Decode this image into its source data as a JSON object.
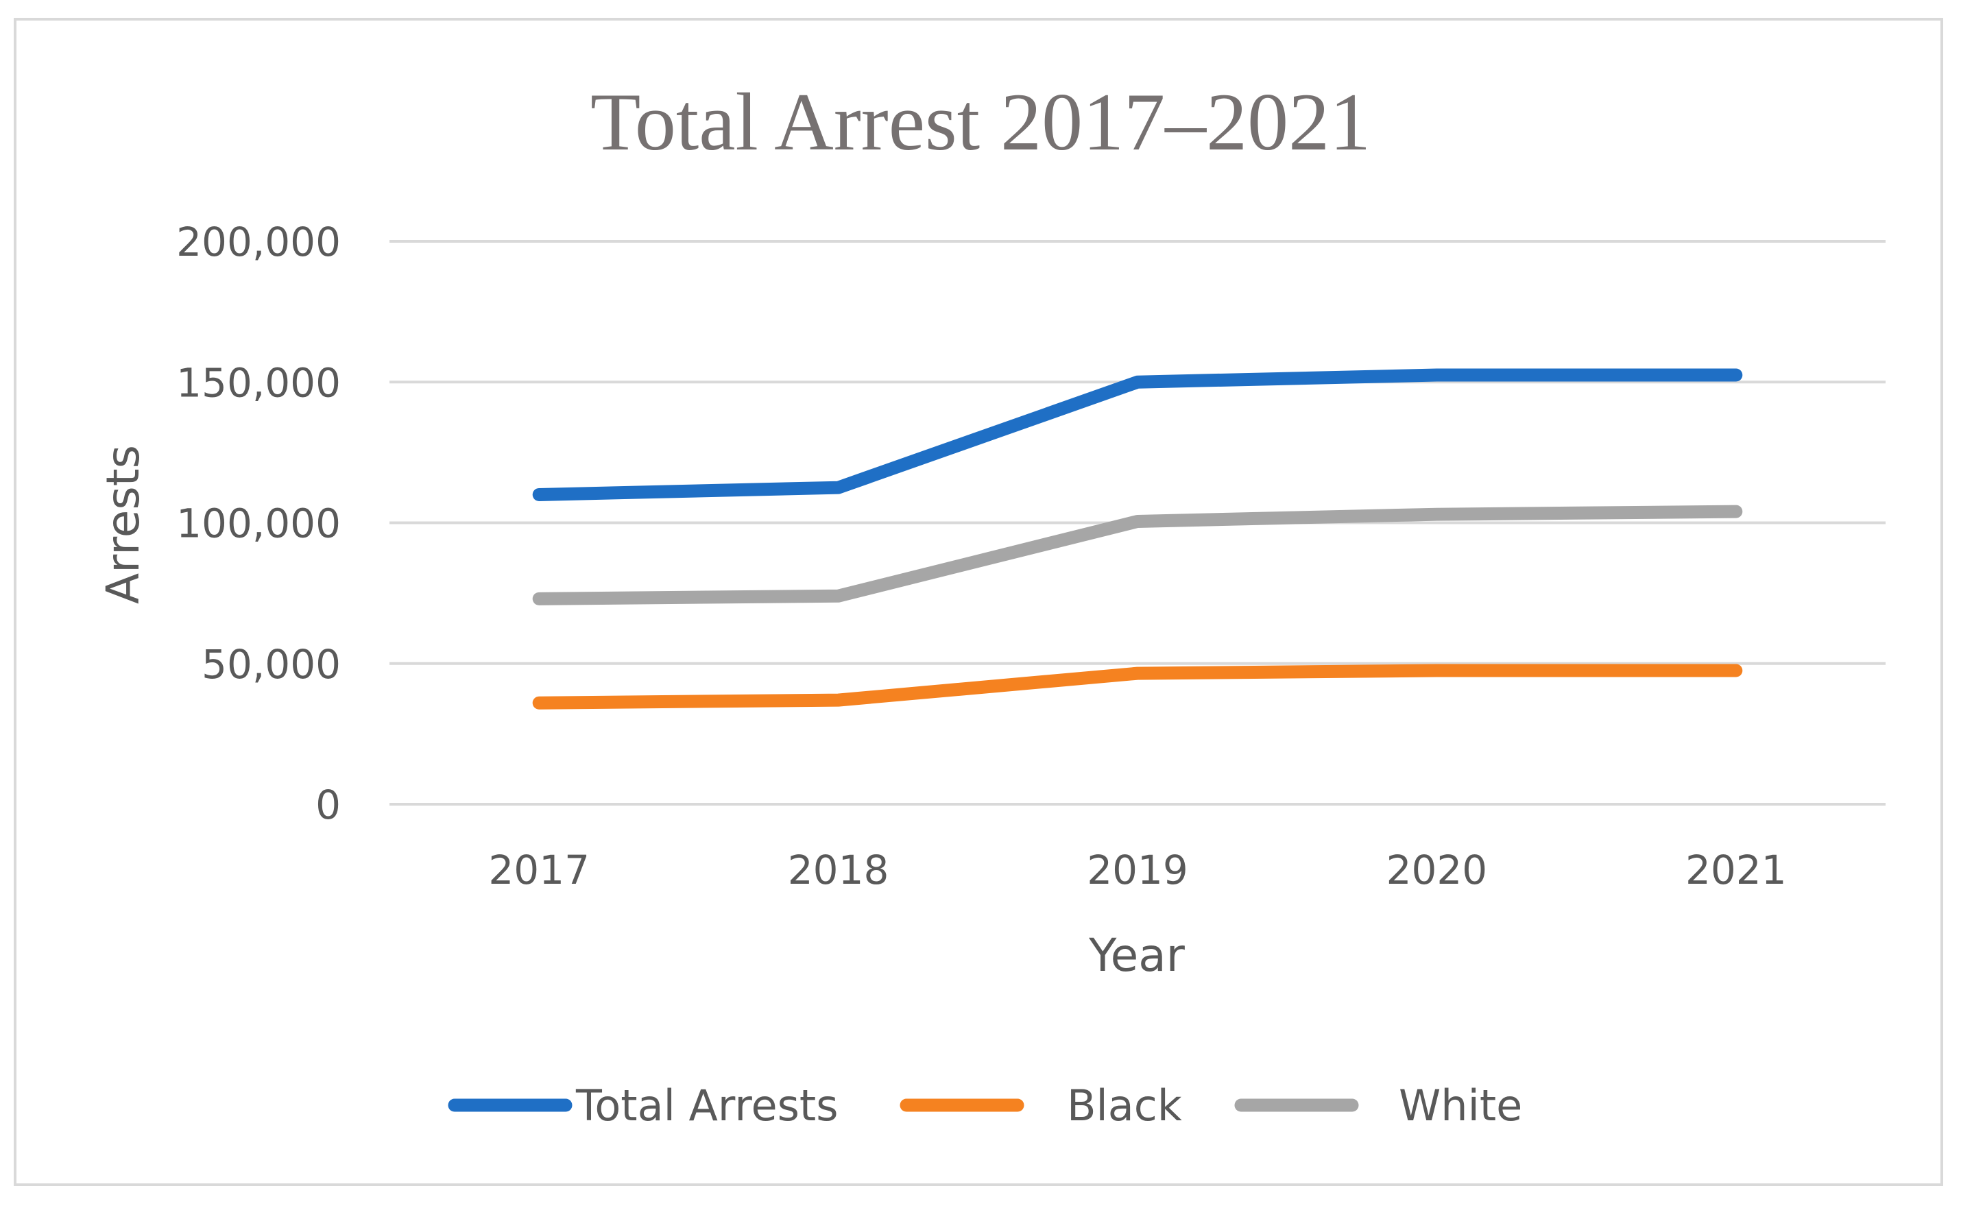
{
  "chart_data": {
    "type": "line",
    "title": "Total Arrest 2017–2021",
    "xlabel": "Year",
    "ylabel": "Arrests",
    "categories": [
      "2017",
      "2018",
      "2019",
      "2020",
      "2021"
    ],
    "ylim": [
      0,
      200000
    ],
    "yticks": [
      0,
      50000,
      100000,
      150000,
      200000
    ],
    "ytick_labels": [
      "0",
      "50,000",
      "100,000",
      "150,000",
      "200,000"
    ],
    "grid": true,
    "legend_position": "bottom",
    "series": [
      {
        "name": "Total Arrests",
        "color": "#1f6fc5",
        "values": [
          110000,
          112500,
          150000,
          152500,
          152500
        ]
      },
      {
        "name": "Black",
        "color": "#f58220",
        "values": [
          36000,
          37000,
          46500,
          47500,
          47500
        ]
      },
      {
        "name": "White",
        "color": "#a6a6a6",
        "values": [
          73000,
          74000,
          100500,
          103000,
          104000
        ]
      }
    ]
  }
}
